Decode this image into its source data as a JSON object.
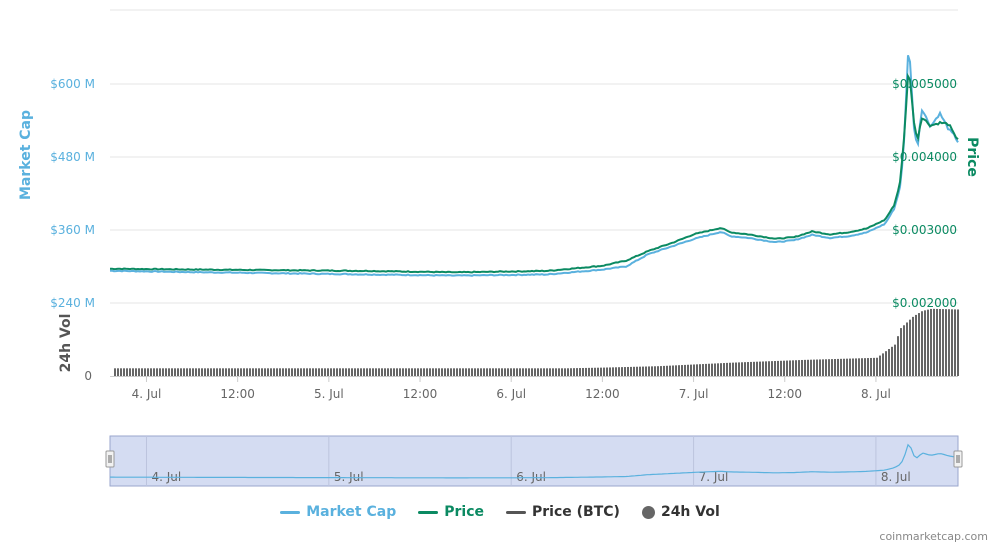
{
  "chart_data": {
    "type": "line",
    "x_ticks": [
      "4. Jul",
      "12:00",
      "5. Jul",
      "12:00",
      "6. Jul",
      "12:00",
      "7. Jul",
      "12:00",
      "8. Jul"
    ],
    "left_axis": {
      "title": "Market Cap",
      "ticks": [
        "$600 M",
        "$480 M",
        "$360 M",
        "$240 M"
      ],
      "ylim": [
        240,
        600
      ]
    },
    "right_axis": {
      "title": "Price",
      "ticks": [
        "$0.005000",
        "$0.004000",
        "$0.003000",
        "$0.002000"
      ],
      "ylim": [
        0.002,
        0.005
      ]
    },
    "volume_axis": {
      "title": "24h Vol",
      "ticks": [
        "0"
      ]
    },
    "x_days_range": [
      3.8,
      8.45
    ],
    "series": [
      {
        "name": "Market Cap",
        "color": "#5ab1de",
        "x": [
          3.8,
          4.2,
          4.7,
          5.2,
          5.7,
          6.2,
          6.5,
          6.63,
          6.75,
          6.9,
          7.0,
          7.15,
          7.2,
          7.3,
          7.45,
          7.55,
          7.65,
          7.75,
          7.85,
          7.95,
          8.05,
          8.1,
          8.13,
          8.15,
          8.18,
          8.21,
          8.23,
          8.25,
          8.3,
          8.35,
          8.4,
          8.43,
          8.45
        ],
        "values": [
          293,
          291,
          289,
          287,
          285,
          287,
          295,
          300,
          320,
          335,
          345,
          357,
          350,
          347,
          340,
          343,
          352,
          347,
          350,
          356,
          370,
          395,
          427,
          480,
          673,
          520,
          500,
          560,
          530,
          552,
          525,
          515,
          505
        ]
      },
      {
        "name": "Price",
        "color": "#0b8a62",
        "x": [
          3.8,
          4.2,
          4.7,
          5.2,
          5.7,
          6.2,
          6.5,
          6.63,
          6.75,
          6.9,
          7.0,
          7.15,
          7.2,
          7.3,
          7.45,
          7.55,
          7.65,
          7.75,
          7.85,
          7.95,
          8.05,
          8.1,
          8.13,
          8.15,
          8.18,
          8.21,
          8.23,
          8.25,
          8.3,
          8.35,
          8.4,
          8.43,
          8.45
        ],
        "values": [
          0.00247,
          0.00246,
          0.00245,
          0.00244,
          0.00242,
          0.00244,
          0.00251,
          0.00258,
          0.00271,
          0.00284,
          0.00294,
          0.00303,
          0.00297,
          0.00294,
          0.00288,
          0.0029,
          0.00298,
          0.00294,
          0.00297,
          0.00302,
          0.00314,
          0.00334,
          0.00362,
          0.0041,
          0.00526,
          0.00443,
          0.00425,
          0.00455,
          0.00443,
          0.00447,
          0.00445,
          0.0043,
          0.00425
        ]
      },
      {
        "name": "Price (BTC)",
        "color": "#555555",
        "values": []
      },
      {
        "name": "24h Vol",
        "color": "#666666",
        "x": [
          3.8,
          6.3,
          6.5,
          6.8,
          7.2,
          7.6,
          8.0,
          8.1,
          8.13,
          8.2,
          8.25,
          8.3,
          8.45
        ],
        "values": [
          0.11,
          0.11,
          0.12,
          0.14,
          0.19,
          0.23,
          0.26,
          0.45,
          0.68,
          0.85,
          0.93,
          0.96,
          0.95
        ]
      }
    ],
    "legend": [
      "Market Cap",
      "Price",
      "Price (BTC)",
      "24h Vol"
    ],
    "navigator_labels": [
      "4. Jul",
      "5. Jul",
      "6. Jul",
      "7. Jul",
      "8. Jul"
    ],
    "grid": true,
    "legend_position": "bottom"
  },
  "credit": "coinmarketcap.com"
}
